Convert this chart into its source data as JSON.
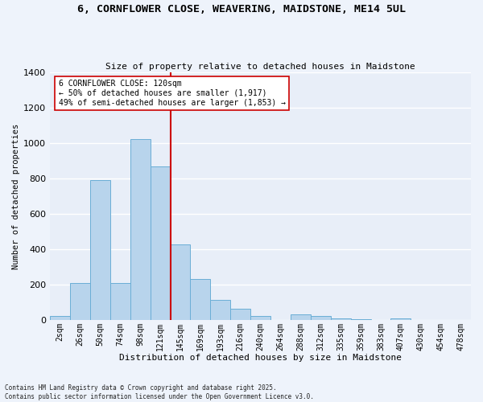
{
  "title_line1": "6, CORNFLOWER CLOSE, WEAVERING, MAIDSTONE, ME14 5UL",
  "title_line2": "Size of property relative to detached houses in Maidstone",
  "xlabel": "Distribution of detached houses by size in Maidstone",
  "ylabel": "Number of detached properties",
  "bar_color": "#B8D4EC",
  "bar_edge_color": "#6aaed6",
  "bg_color": "#E8EEF8",
  "grid_color": "#FFFFFF",
  "categories": [
    "2sqm",
    "26sqm",
    "50sqm",
    "74sqm",
    "98sqm",
    "121sqm",
    "145sqm",
    "169sqm",
    "193sqm",
    "216sqm",
    "240sqm",
    "264sqm",
    "288sqm",
    "312sqm",
    "335sqm",
    "359sqm",
    "383sqm",
    "407sqm",
    "430sqm",
    "454sqm",
    "478sqm"
  ],
  "values": [
    20,
    210,
    790,
    210,
    1025,
    870,
    425,
    230,
    115,
    65,
    20,
    0,
    30,
    20,
    10,
    5,
    0,
    10,
    0,
    0,
    0
  ],
  "ylim": [
    0,
    1400
  ],
  "yticks": [
    0,
    200,
    400,
    600,
    800,
    1000,
    1200,
    1400
  ],
  "vline_x": 5.5,
  "marker_label": "6 CORNFLOWER CLOSE: 120sqm",
  "annotation_line1": "← 50% of detached houses are smaller (1,917)",
  "annotation_line2": "49% of semi-detached houses are larger (1,853) →",
  "vline_color": "#CC0000",
  "footnote": "Contains HM Land Registry data © Crown copyright and database right 2025.\nContains public sector information licensed under the Open Government Licence v3.0.",
  "fig_width": 6.0,
  "fig_height": 5.0,
  "dpi": 100
}
